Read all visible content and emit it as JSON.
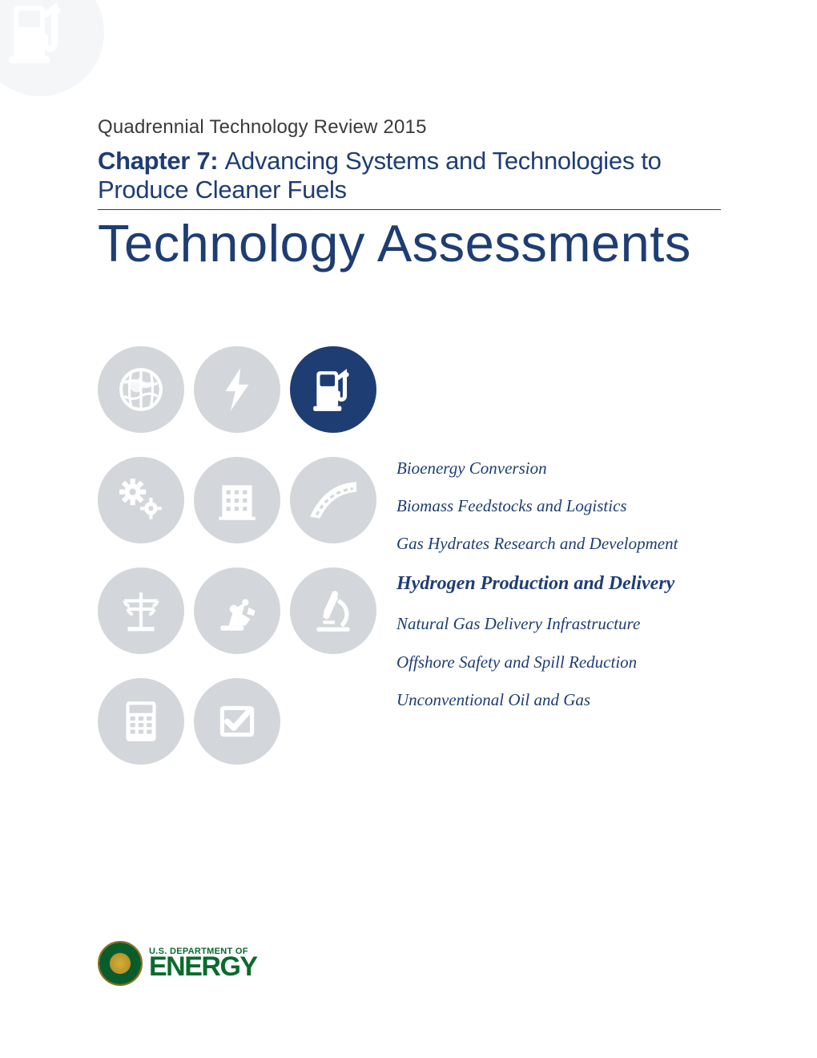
{
  "colors": {
    "primary_blue": "#1e3d73",
    "icon_inactive_bg": "#d3d6da",
    "icon_inactive_fg": "#ffffff",
    "icon_active_bg": "#1e3d73",
    "icon_active_fg": "#ffffff",
    "watermark_bg": "#f5f6f8",
    "watermark_fg": "#ffffff",
    "text_gray": "#3a3a3a",
    "energy_green": "#0a6b2c"
  },
  "header": {
    "review": "Quadrennial Technology Review 2015",
    "chapter_label": "Chapter 7:",
    "chapter_title": "Advancing Systems and Technologies to Produce Cleaner Fuels",
    "main_title": "Technology Assessments"
  },
  "icons": [
    {
      "name": "globe-icon",
      "active": false
    },
    {
      "name": "lightning-icon",
      "active": false
    },
    {
      "name": "fuel-pump-icon",
      "active": true
    },
    {
      "name": "gears-icon",
      "active": false
    },
    {
      "name": "building-icon",
      "active": false
    },
    {
      "name": "road-icon",
      "active": false
    },
    {
      "name": "powerline-icon",
      "active": false
    },
    {
      "name": "robot-arm-icon",
      "active": false
    },
    {
      "name": "microscope-icon",
      "active": false
    },
    {
      "name": "calculator-icon",
      "active": false
    },
    {
      "name": "checkbox-icon",
      "active": false
    }
  ],
  "topics": [
    {
      "label": "Bioenergy Conversion",
      "highlight": false
    },
    {
      "label": "Biomass Feedstocks and Logistics",
      "highlight": false
    },
    {
      "label": "Gas Hydrates Research and Development",
      "highlight": false
    },
    {
      "label": "Hydrogen Production and Delivery",
      "highlight": true
    },
    {
      "label": "Natural Gas Delivery Infrastructure",
      "highlight": false
    },
    {
      "label": "Offshore Safety and Spill Reduction",
      "highlight": false
    },
    {
      "label": "Unconventional Oil and Gas",
      "highlight": false
    }
  ],
  "footer": {
    "dept": "U.S. DEPARTMENT OF",
    "energy": "ENERGY"
  }
}
